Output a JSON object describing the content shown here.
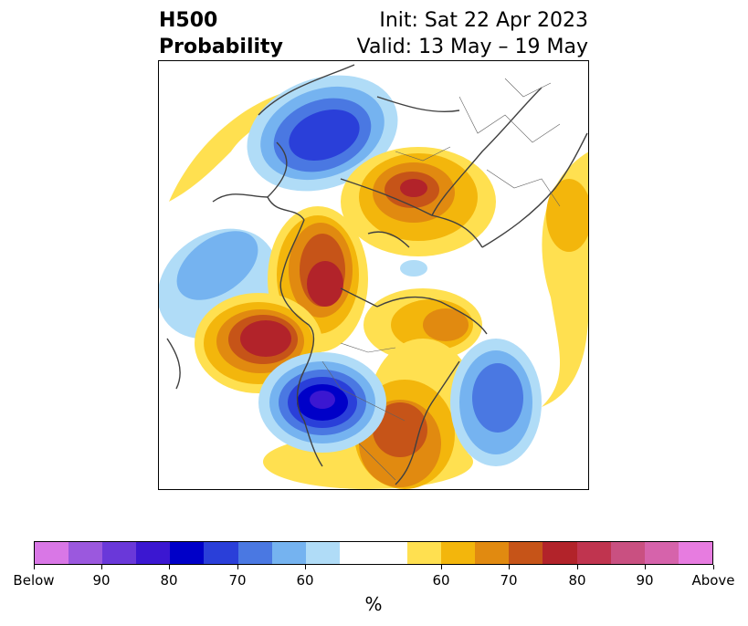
{
  "title": {
    "line1": "H500",
    "line2": "Probability"
  },
  "init": {
    "line1": "Init: Sat 22 Apr 2023",
    "line2": "Valid: 13 May – 19 May"
  },
  "colorbar": {
    "colors": [
      "#d977e6",
      "#9b58de",
      "#6a38d9",
      "#3b17d1",
      "#0000c8",
      "#2a3fd9",
      "#4a78e2",
      "#75b3f0",
      "#b0dcf7",
      "#ffffff",
      "#ffffff",
      "#ffe050",
      "#f3b60c",
      "#e18a10",
      "#c65418",
      "#b2232a",
      "#c0344f",
      "#c95081",
      "#d663ab",
      "#e77ce0"
    ],
    "ticks": [
      "Below",
      "90",
      "80",
      "70",
      "60",
      "60",
      "70",
      "80",
      "90",
      "Above"
    ],
    "unit": "%"
  },
  "colors": {
    "blue_light": "#b0dcf7",
    "blue_mid": "#75b3f0",
    "blue": "#4a78e2",
    "blue_dark": "#2a3fd9",
    "blue_deep": "#0000c8",
    "purple": "#3b17d1",
    "yellow": "#ffe050",
    "gold": "#f3b60c",
    "orange": "#e18a10",
    "rust": "#c65418",
    "red": "#b2232a"
  }
}
